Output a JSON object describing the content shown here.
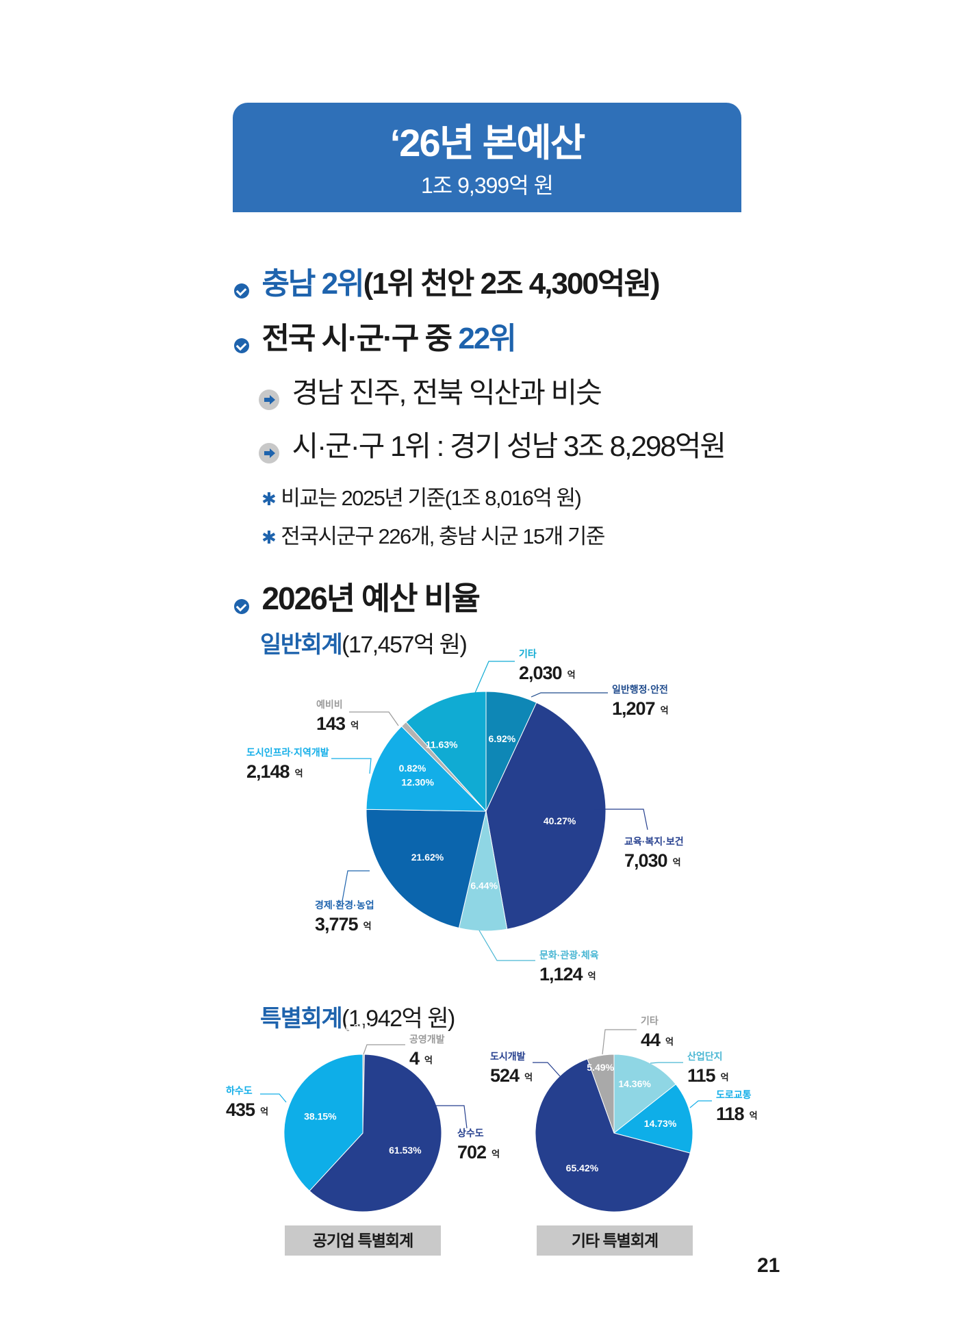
{
  "header": {
    "title": "‘26년 본예산",
    "subtitle": "1조 9,399억 원"
  },
  "highlights": {
    "rank_chungnam": {
      "blue": "충남 2위",
      "rest": "(1위 천안 2조 4,300억원)"
    },
    "rank_national": {
      "rest": "전국 시·군·구 중 ",
      "blue": "22위"
    },
    "similar": "경남 진주, 전북 익산과 비슷",
    "top_national": "시·군·구 1위 : 경기 성남 3조 8,298억원",
    "note1": "비교는 2025년 기준(1조 8,016억 원)",
    "note2": "전국시군구 226개, 충남 시군 15개 기준"
  },
  "section_title": "2026년 예산 비율",
  "general_account": {
    "title_blue": "일반회계",
    "title_rest": "(17,457억 원)"
  },
  "special_account": {
    "title_blue": "특별회계",
    "title_rest": "(1,942억 원)"
  },
  "unit_label": "억",
  "colors": {
    "accent": "#1e63ad",
    "banner": "#2f70b8",
    "caption_bg": "#c9c9c9"
  },
  "chart_data": [
    {
      "type": "pie",
      "title": "일반회계(17,457억 원)",
      "slices": [
        {
          "name": "일반행정·안전",
          "value": 1207,
          "percent": 6.92,
          "color": "#0e87b6",
          "label_color": "#1e4a8c"
        },
        {
          "name": "교육·복지·보건",
          "value": 7030,
          "percent": 40.27,
          "color": "#253f8e",
          "label_color": "#253f8e"
        },
        {
          "name": "문화·관광·체육",
          "value": 1124,
          "percent": 6.44,
          "color": "#8fd6e4",
          "label_color": "#49b6d3"
        },
        {
          "name": "경제·환경·농업",
          "value": 3775,
          "percent": 21.62,
          "color": "#0b65ad",
          "label_color": "#1e63ad"
        },
        {
          "name": "도시인프라·지역개발",
          "value": 2148,
          "percent": 12.3,
          "color": "#13aee8",
          "label_color": "#13aee8"
        },
        {
          "name": "예비비",
          "value": 143,
          "percent": 0.82,
          "color": "#b3b3b3",
          "label_color": "#9a9a9a"
        },
        {
          "name": "기타",
          "value": 2030,
          "percent": 11.63,
          "color": "#10abd3",
          "label_color": "#10abd3"
        }
      ]
    },
    {
      "type": "pie",
      "title": "공기업 특별회계",
      "slices": [
        {
          "name": "공영개발",
          "value": 4,
          "percent": 0.33,
          "color": "#b3b3b3",
          "label_color": "#9a9a9a"
        },
        {
          "name": "상수도",
          "value": 702,
          "percent": 61.53,
          "color": "#253f8e",
          "label_color": "#253f8e"
        },
        {
          "name": "하수도",
          "value": 435,
          "percent": 38.15,
          "color": "#0eaee8",
          "label_color": "#13aee8"
        }
      ]
    },
    {
      "type": "pie",
      "title": "기타 특별회계",
      "slices": [
        {
          "name": "산업단지",
          "value": 115,
          "percent": 14.36,
          "color": "#8fd6e4",
          "label_color": "#49b6d3"
        },
        {
          "name": "도로교통",
          "value": 118,
          "percent": 14.73,
          "color": "#0eaee8",
          "label_color": "#13aee8"
        },
        {
          "name": "도시개발",
          "value": 524,
          "percent": 65.42,
          "color": "#253f8e",
          "label_color": "#253f8e"
        },
        {
          "name": "기타",
          "value": 44,
          "percent": 5.49,
          "color": "#a9a9a9",
          "label_color": "#9a9a9a"
        }
      ]
    }
  ],
  "captions": {
    "public_enterprise": "공기업 특별회계",
    "other": "기타 특별회계"
  },
  "page_number": "21"
}
